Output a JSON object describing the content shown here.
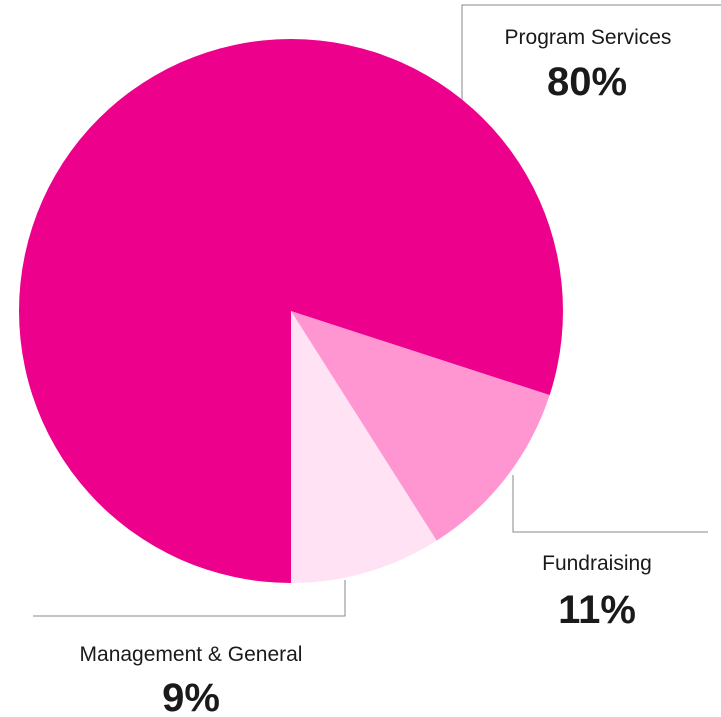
{
  "chart_data": {
    "type": "pie",
    "slices": [
      {
        "label": "Program Services",
        "value": 80,
        "value_label": "80%",
        "color": "#EC008C"
      },
      {
        "label": "Fundraising",
        "value": 11,
        "value_label": "11%",
        "color": "#FF96D2"
      },
      {
        "label": "Management & General",
        "value": 9,
        "value_label": "9%",
        "color": "#FFE3F4"
      }
    ],
    "legend": "none"
  }
}
